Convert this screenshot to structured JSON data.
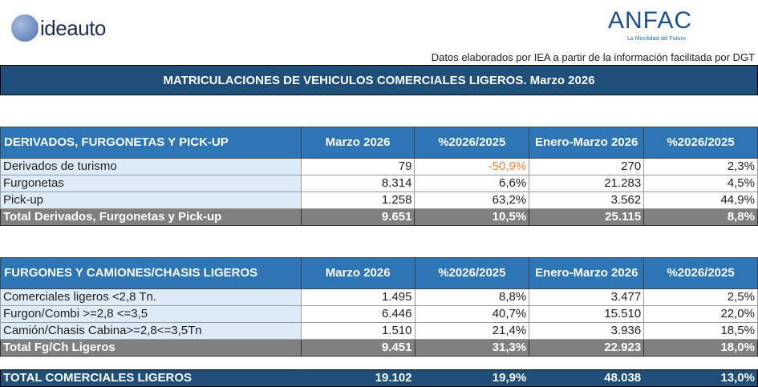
{
  "logos": {
    "left": "ideauto",
    "right": "ANFAC",
    "right_tagline": "La Movilidad del Futuro"
  },
  "source_note": "Datos elaborados por IEA a partir de la información facilitada por DGT",
  "title": "MATRICULACIONES DE VEHICULOS COMERCIALES LIGEROS. Marzo 2026",
  "columns": [
    "Marzo 2026",
    "%2026/2025",
    "Enero-Marzo 2026",
    "%2026/2025"
  ],
  "section1": {
    "heading": "DERIVADOS, FURGONETAS Y PICK-UP",
    "rows": [
      {
        "label": "Derivados de turismo",
        "m": "79",
        "mp": "-50,9%",
        "ytd": "270",
        "yp": "2,3%"
      },
      {
        "label": "Furgonetas",
        "m": "8.314",
        "mp": "6,6%",
        "ytd": "21.283",
        "yp": "4,5%"
      },
      {
        "label": "Pick-up",
        "m": "1.258",
        "mp": "63,2%",
        "ytd": "3.562",
        "yp": "44,9%"
      }
    ],
    "total": {
      "label": "Total Derivados, Furgonetas y Pick-up",
      "m": "9.651",
      "mp": "10,5%",
      "ytd": "25.115",
      "yp": "8,8%"
    }
  },
  "section2": {
    "heading": "FURGONES Y CAMIONES/CHASIS LIGEROS",
    "rows": [
      {
        "label": "Comerciales ligeros <2,8 Tn.",
        "m": "1.495",
        "mp": "8,8%",
        "ytd": "3.477",
        "yp": "2,5%"
      },
      {
        "label": "Furgon/Combi >=2,8 <=3,5",
        "m": "6.446",
        "mp": "40,7%",
        "ytd": "15.510",
        "yp": "22,0%"
      },
      {
        "label": "Camión/Chasis Cabina>=2,8<=3,5Tn",
        "m": "1.510",
        "mp": "21,4%",
        "ytd": "3.936",
        "yp": "18,5%"
      }
    ],
    "total": {
      "label": "Total Fg/Ch Ligeros",
      "m": "9.451",
      "mp": "31,3%",
      "ytd": "22.923",
      "yp": "18,0%"
    }
  },
  "grand_total": {
    "label": "TOTAL COMERCIALES LIGEROS",
    "m": "19.102",
    "mp": "19,9%",
    "ytd": "48.038",
    "yp": "13,0%"
  }
}
